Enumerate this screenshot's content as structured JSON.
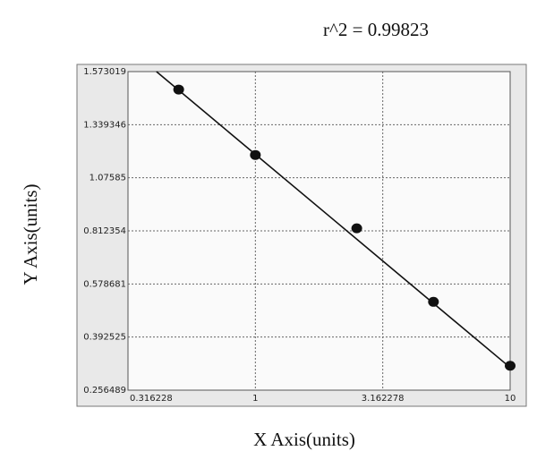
{
  "chart_data": {
    "type": "scatter",
    "title": "r^2 = 0.99823",
    "xlabel": "X Axis(units)",
    "ylabel": "Y Axis(units)",
    "x": [
      0.5,
      1,
      2.5,
      5,
      10
    ],
    "values": [
      1.494,
      1.189,
      0.825,
      0.516,
      0.319
    ],
    "fit": {
      "x": [
        0.409,
        10
      ],
      "values": [
        1.573019,
        0.3145
      ]
    },
    "color": "#111111",
    "xscale": "log",
    "xlim": [
      0.316228,
      10
    ],
    "xticks": [
      0.316228,
      1,
      3.162278,
      10
    ],
    "ylim": [
      0.256489,
      1.573019
    ],
    "yticks": [
      0.256489,
      0.392525,
      0.578681,
      0.812354,
      1.07585,
      1.339346,
      1.573019
    ],
    "grid": true
  }
}
